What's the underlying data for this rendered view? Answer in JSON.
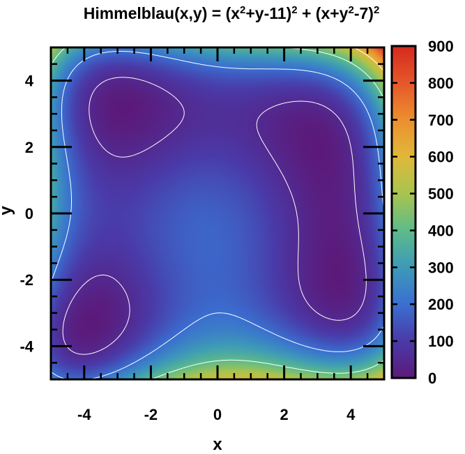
{
  "chart_data": {
    "type": "heatmap",
    "title": {
      "prefix": "Himmelblau(x,y) = (x",
      "sup1": "2",
      "mid": "+y-11)",
      "sup2": "2",
      "mid2": " + (x+y",
      "sup3": "2",
      "mid3": "-7)",
      "sup4": "2"
    },
    "xlabel": "x",
    "ylabel": "y",
    "xlim": [
      -5,
      5
    ],
    "ylim": [
      -5,
      5
    ],
    "xticks": [
      -4,
      -2,
      0,
      2,
      4
    ],
    "yticks": [
      -4,
      -2,
      0,
      2,
      4
    ],
    "colorbar": {
      "range": [
        0,
        900
      ],
      "ticks": [
        0,
        100,
        200,
        300,
        400,
        500,
        600,
        700,
        800,
        900
      ],
      "colors": [
        "#5b1a7a",
        "#4a3aa8",
        "#3a6fd0",
        "#3d9ab8",
        "#5dbb8a",
        "#a8c44e",
        "#e0b83a",
        "#ec8f2e",
        "#e6572a",
        "#d32a1e"
      ]
    },
    "contour_levels": [
      50,
      200,
      400,
      600
    ],
    "contour_color": "#ffffff"
  }
}
